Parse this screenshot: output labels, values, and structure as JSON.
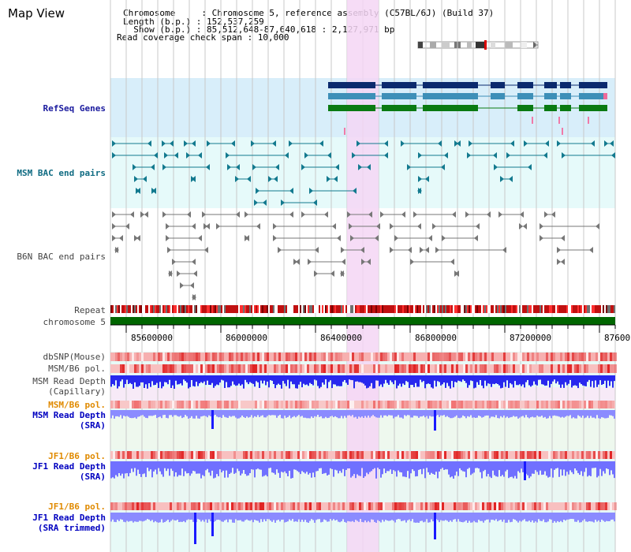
{
  "title": "Map View",
  "header": {
    "line1": "Chromosome     : Chromosome 5, reference assembly (C57BL/6J) (Build 37)",
    "line2": "Length (b.p.) : 152,537,259",
    "line3": "  Show (b.p.) : 85,512,648-87,640,618 : 2,127,971 bp",
    "line4": "Read coverage check span : 10,000"
  },
  "tracks": {
    "refseq": "RefSeq Genes",
    "msm_bac": "MSM BAC end pairs",
    "b6n_bac": "B6N BAC end pairs",
    "repeat": "Repeat",
    "chromosome": "chromosome 5",
    "dbsnp": "dbSNP(Mouse)",
    "msm_b6_pol_1": "MSM/B6 pol.",
    "msm_depth_cap_1": "MSM Read Depth",
    "msm_depth_cap_2": "(Capillary)",
    "msm_b6_pol_2": "MSM/B6 pol.",
    "msm_depth_sra_1": "MSM Read Depth",
    "msm_depth_sra_2": "(SRA)",
    "jf1_b6_pol_1": "JF1/B6 pol.",
    "jf1_depth_sra_1": "JF1 Read Depth",
    "jf1_depth_sra_2": "(SRA)",
    "jf1_b6_pol_2": "JF1/B6 pol.",
    "jf1_depth_trim_1": "JF1 Read Depth",
    "jf1_depth_trim_2": "(SRA trimmed)"
  },
  "axis": {
    "ticks": [
      "85600000",
      "86000000",
      "86400000",
      "86800000",
      "87200000",
      "87600"
    ]
  },
  "colors": {
    "refseq_bg": "#d8eefa",
    "bac_bg": "#e6fafa",
    "highlight": "#f5d6f5",
    "navy_gene": "#0b2a6e",
    "teal_gene": "#3d8fb8",
    "green_gene": "#0a7a12",
    "chromosome_bar": "#006600",
    "depth_blue": "#1a1aff"
  }
}
